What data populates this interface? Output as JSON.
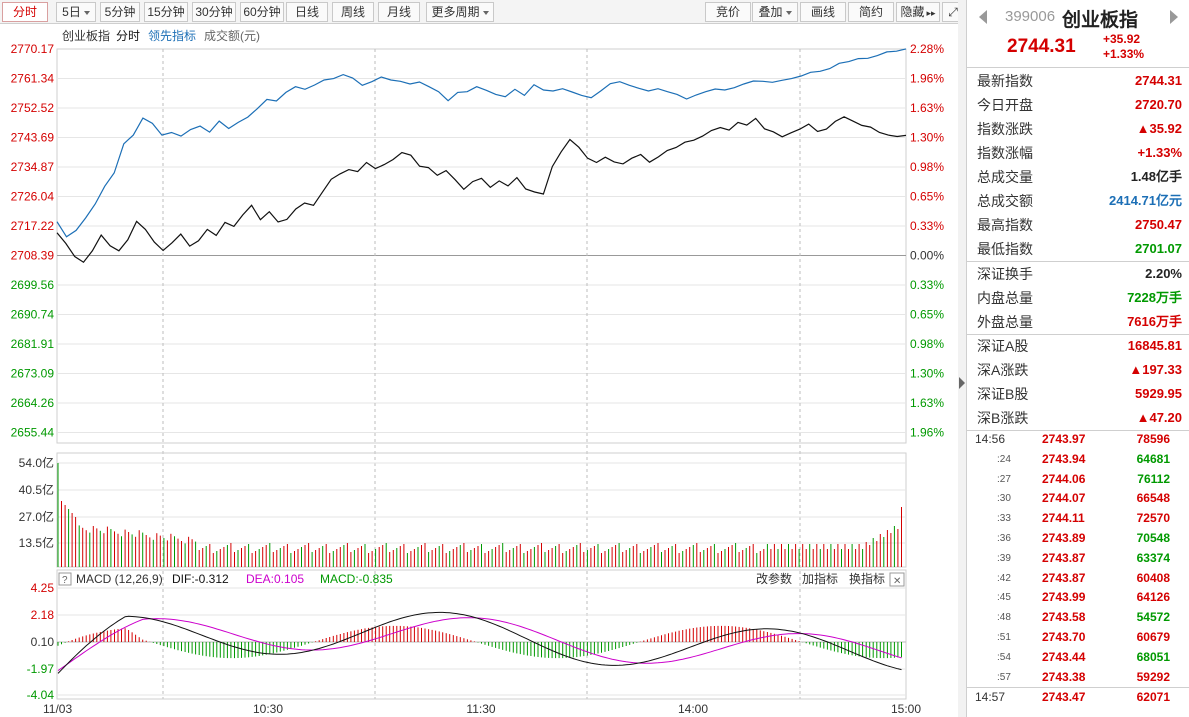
{
  "toolbar": {
    "tabs": [
      "分时",
      "5日",
      "5分钟",
      "15分钟",
      "30分钟",
      "60分钟",
      "日线",
      "周线",
      "月线",
      "更多周期"
    ],
    "right_buttons": [
      "竞价",
      "叠加",
      "画线",
      "简约",
      "隐藏"
    ],
    "expand_icon": "fullscreen-icon"
  },
  "chart": {
    "legend": {
      "name": "创业板指",
      "mode": "分时",
      "lead": "领先指标",
      "amount": "成交额(元)"
    },
    "price_labels": [
      "2770.17",
      "2761.34",
      "2752.52",
      "2743.69",
      "2734.87",
      "2726.04",
      "2717.22",
      "2708.39",
      "2699.56",
      "2690.74",
      "2681.91",
      "2673.09",
      "2664.26",
      "2655.44"
    ],
    "pct_labels": [
      "2.28%",
      "1.96%",
      "1.63%",
      "1.30%",
      "0.98%",
      "0.65%",
      "0.33%",
      "0.00%",
      "0.33%",
      "0.65%",
      "0.98%",
      "1.30%",
      "1.63%",
      "1.96%"
    ],
    "volume_labels": [
      "54.0亿",
      "40.5亿",
      "27.0亿",
      "13.5亿"
    ],
    "macd": {
      "title": "MACD (12,26,9)",
      "dif": "DIF:-0.312",
      "dea": "DEA:0.105",
      "macd": "MACD:-0.835",
      "buttons": [
        "改参数",
        "加指标",
        "换指标"
      ],
      "labels": [
        "4.25",
        "2.18",
        "0.10",
        "-1.97",
        "-4.04"
      ]
    },
    "time_labels": [
      "11/03",
      "10:30",
      "11:30",
      "14:00",
      "15:00"
    ],
    "colors": {
      "up": "#d40000",
      "down": "#009900",
      "price_line": "#111111",
      "lead_line": "#1c6fb6",
      "dea": "#cc00cc",
      "grid": "#e6e6e6",
      "dashed": "#bdbdbd"
    }
  },
  "chart_data": {
    "type": "line",
    "series": [
      {
        "name": "创业板指",
        "values": [
          2715.2,
          2712,
          2708.1,
          2706.4,
          2709.8,
          2714.5,
          2711.3,
          2709.8,
          2713.1,
          2718.6,
          2716.2,
          2712.4,
          2709.9,
          2712.2,
          2714.8,
          2711.2,
          2712.8,
          2716.2,
          2714.4,
          2718.3,
          2717.1,
          2720.5,
          2723.4,
          2719.1,
          2721.5,
          2718.4,
          2719.2,
          2722.3,
          2724.1,
          2723.4,
          2727.3,
          2731.2,
          2732.8,
          2734.1,
          2733.5,
          2736.2,
          2734.4,
          2735.6,
          2737.1,
          2739.2,
          2738.4,
          2735.1,
          2734.7,
          2732.4,
          2733.8,
          2731.1,
          2728.2,
          2730.5,
          2731.5,
          2728.8,
          2730.7,
          2729.2,
          2731.7,
          2728.3,
          2727.4,
          2726.8,
          2735,
          2739.4,
          2743.1,
          2740.8,
          2737.5,
          2736.2,
          2737.8,
          2736.4,
          2735.8,
          2737.5,
          2738.6,
          2736.3,
          2737.9,
          2739.8,
          2740.7,
          2742.3,
          2742.9,
          2744.1,
          2745.8,
          2746.7,
          2745.9,
          2748.2,
          2747.4,
          2749.4,
          2746.3,
          2745.4,
          2743.9,
          2745.1,
          2746.2,
          2747.7,
          2745.5,
          2746.2,
          2748.5,
          2749.9,
          2748.6,
          2747.3,
          2746.8,
          2745.2,
          2744.4,
          2744.0,
          2744.31
        ]
      },
      {
        "name": "领先指标",
        "values": [
          2718.5,
          2714,
          2715.9,
          2719.6,
          2723.8,
          2729.1,
          2733.1,
          2741.8,
          2744.4,
          2749.5,
          2747.9,
          2744.4,
          2745.2,
          2744.1,
          2746.1,
          2747.1,
          2745.3,
          2748.6,
          2746.4,
          2748.2,
          2749.8,
          2752.3,
          2755.1,
          2754.6,
          2757.2,
          2758.9,
          2758.1,
          2759.4,
          2760.9,
          2761.3,
          2762.5,
          2761.5,
          2759.3,
          2760.4,
          2761.8,
          2760.9,
          2760.5,
          2759.7,
          2760.3,
          2758.9,
          2757.4,
          2754.7,
          2757.2,
          2757.4,
          2758.9,
          2757.8,
          2756.6,
          2755.9,
          2758.1,
          2756.3,
          2759.5,
          2757.9,
          2757.6,
          2758.3,
          2757.3,
          2756.3,
          2755.6,
          2757.6,
          2759.8,
          2760.4,
          2759.3,
          2758.4,
          2757.6,
          2758.3,
          2757.4,
          2756.6,
          2755.2,
          2756.4,
          2757.4,
          2758.2,
          2757.9,
          2758.6,
          2759.7,
          2760.6,
          2760.5,
          2760.2,
          2760.8,
          2761.3,
          2762.1,
          2763.2,
          2763.5,
          2764.3,
          2765.9,
          2766.4,
          2767.3,
          2767.4,
          2768.2,
          2769.3,
          2769.5,
          2770.2
        ]
      }
    ],
    "ylim": [
      2655.44,
      2770.17
    ]
  },
  "quote": {
    "code": "399006",
    "name": "创业板指",
    "price": "2744.31",
    "change": "+35.92",
    "change_pct": "+1.33%",
    "stats1": [
      {
        "label": "最新指数",
        "value": "2744.31",
        "color": "red"
      },
      {
        "label": "今日开盘",
        "value": "2720.70",
        "color": "red"
      },
      {
        "label": "指数涨跌",
        "value": "▲35.92",
        "color": "red"
      },
      {
        "label": "指数涨幅",
        "value": "+1.33%",
        "color": "red"
      },
      {
        "label": "总成交量",
        "value": "1.48亿手",
        "color": "dark"
      },
      {
        "label": "总成交额",
        "value": "2414.71亿元",
        "color": "blue"
      },
      {
        "label": "最高指数",
        "value": "2750.47",
        "color": "red"
      },
      {
        "label": "最低指数",
        "value": "2701.07",
        "color": "green"
      }
    ],
    "stats2": [
      {
        "label": "深证换手",
        "value": "2.20%",
        "color": "dark"
      },
      {
        "label": "内盘总量",
        "value": "7228万手",
        "color": "green"
      },
      {
        "label": "外盘总量",
        "value": "7616万手",
        "color": "red"
      }
    ],
    "stats3": [
      {
        "label": "深证A股",
        "value": "16845.81",
        "color": "red"
      },
      {
        "label": "深A涨跌",
        "value": "▲197.33",
        "color": "red"
      },
      {
        "label": "深证B股",
        "value": "5929.95",
        "color": "red"
      },
      {
        "label": "深B涨跌",
        "value": "▲47.20",
        "color": "red"
      }
    ],
    "ticks": [
      {
        "t": "14:56",
        "p": "2743.97",
        "v": "78596",
        "c": "red",
        "big": true
      },
      {
        "t": ":24",
        "p": "2743.94",
        "v": "64681",
        "c": "green"
      },
      {
        "t": ":27",
        "p": "2744.06",
        "v": "76112",
        "c": "green"
      },
      {
        "t": ":30",
        "p": "2744.07",
        "v": "66548",
        "c": "red"
      },
      {
        "t": ":33",
        "p": "2744.11",
        "v": "72570",
        "c": "red"
      },
      {
        "t": ":36",
        "p": "2743.89",
        "v": "70548",
        "c": "green"
      },
      {
        "t": ":39",
        "p": "2743.87",
        "v": "63374",
        "c": "green"
      },
      {
        "t": ":42",
        "p": "2743.87",
        "v": "60408",
        "c": "red"
      },
      {
        "t": ":45",
        "p": "2743.99",
        "v": "64126",
        "c": "red"
      },
      {
        "t": ":48",
        "p": "2743.58",
        "v": "54572",
        "c": "green"
      },
      {
        "t": ":51",
        "p": "2743.70",
        "v": "60679",
        "c": "red"
      },
      {
        "t": ":54",
        "p": "2743.44",
        "v": "68051",
        "c": "green"
      },
      {
        "t": ":57",
        "p": "2743.38",
        "v": "59292",
        "c": "red"
      },
      {
        "t": "14:57",
        "p": "2743.47",
        "v": "62071",
        "c": "red",
        "big": true
      }
    ]
  }
}
